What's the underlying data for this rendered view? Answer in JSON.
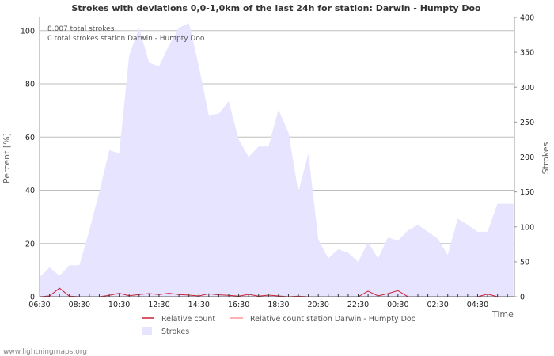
{
  "credit": "www.lightningmaps.org",
  "chart_data": {
    "type": "area",
    "title": "Strokes with deviations 0,0-1,0km of the last 24h for station: Darwin - Humpty Doo",
    "xlabel": "Time",
    "ylabel_left": "Percent   [%]",
    "ylabel_right": "Strokes",
    "ylim_left": [
      0,
      105
    ],
    "ylim_right": [
      0,
      400
    ],
    "yticks_left": [
      0,
      20,
      40,
      60,
      80,
      100
    ],
    "yticks_right": [
      0,
      50,
      100,
      150,
      200,
      250,
      300,
      350,
      400
    ],
    "xticks": [
      "06:30",
      "08:30",
      "10:30",
      "12:30",
      "14:30",
      "16:30",
      "18:30",
      "20:30",
      "22:30",
      "00:30",
      "02:30",
      "04:30"
    ],
    "x_start_hours": 6.5,
    "x_end_hours": 30.35,
    "annotations": [
      "8.007 total strokes",
      "0 total strokes station Darwin - Humpty Doo"
    ],
    "legend": [
      {
        "label": "Relative count",
        "color": "#cc2233",
        "kind": "line"
      },
      {
        "label": "Relative count station Darwin - Humpty Doo",
        "color": "#ff9999",
        "kind": "line"
      },
      {
        "label": "Strokes",
        "color": "#e6e4ff",
        "kind": "area"
      }
    ],
    "series": [
      {
        "name": "Strokes",
        "axis": "right",
        "color": "#e6e4ff",
        "x": [
          6.5,
          7.0,
          7.5,
          8.0,
          8.5,
          9.0,
          9.5,
          10.0,
          10.5,
          11.0,
          11.5,
          12.0,
          12.5,
          13.0,
          13.5,
          14.0,
          14.5,
          15.0,
          15.5,
          16.0,
          16.5,
          17.0,
          17.5,
          18.0,
          18.5,
          19.0,
          19.5,
          20.0,
          20.5,
          21.0,
          21.5,
          22.0,
          22.5,
          23.0,
          23.5,
          24.0,
          24.5,
          25.0,
          25.5,
          26.0,
          26.5,
          27.0,
          27.5,
          28.0,
          28.5,
          29.0,
          29.5,
          30.0,
          30.3
        ],
        "values": [
          28,
          42,
          30,
          45,
          45,
          95,
          150,
          210,
          205,
          345,
          385,
          335,
          330,
          360,
          385,
          392,
          330,
          260,
          262,
          280,
          225,
          200,
          215,
          215,
          268,
          235,
          150,
          205,
          82,
          55,
          68,
          63,
          50,
          78,
          55,
          85,
          80,
          95,
          103,
          93,
          83,
          60,
          112,
          103,
          93,
          93,
          133,
          133,
          133
        ]
      },
      {
        "name": "Relative count",
        "axis": "left",
        "color": "#cc2233",
        "x": [
          6.5,
          7.0,
          7.5,
          8.0,
          8.5,
          9.0,
          9.5,
          10.0,
          10.5,
          11.0,
          11.5,
          12.0,
          12.5,
          13.0,
          13.5,
          14.0,
          14.5,
          15.0,
          15.5,
          16.0,
          16.5,
          17.0,
          17.5,
          18.0,
          18.5,
          19.0,
          19.5,
          20.0,
          20.5,
          21.0,
          21.5,
          22.0,
          22.5,
          23.0,
          23.5,
          24.0,
          24.5,
          25.0,
          25.5,
          26.0,
          26.5,
          27.0,
          27.5,
          28.0,
          28.5,
          29.0,
          29.5,
          30.0,
          30.3
        ],
        "values": [
          0,
          0.3,
          3.2,
          0.2,
          0,
          0,
          0,
          0.5,
          1.3,
          0.4,
          0.8,
          1.2,
          0.8,
          1.3,
          0.8,
          0.6,
          0.3,
          1.1,
          0.7,
          0.5,
          0.2,
          0.9,
          0.2,
          0.6,
          0.3,
          0,
          0.2,
          0,
          0,
          0,
          0,
          0,
          0,
          2.1,
          0.3,
          1.2,
          2.3,
          0,
          0,
          0,
          0,
          0,
          0,
          0,
          0,
          1.0,
          0,
          0,
          0
        ]
      },
      {
        "name": "Relative count station Darwin - Humpty Doo",
        "axis": "left",
        "color": "#ff9999",
        "x": [
          6.5,
          30.3
        ],
        "values": [
          0,
          0
        ]
      }
    ]
  }
}
